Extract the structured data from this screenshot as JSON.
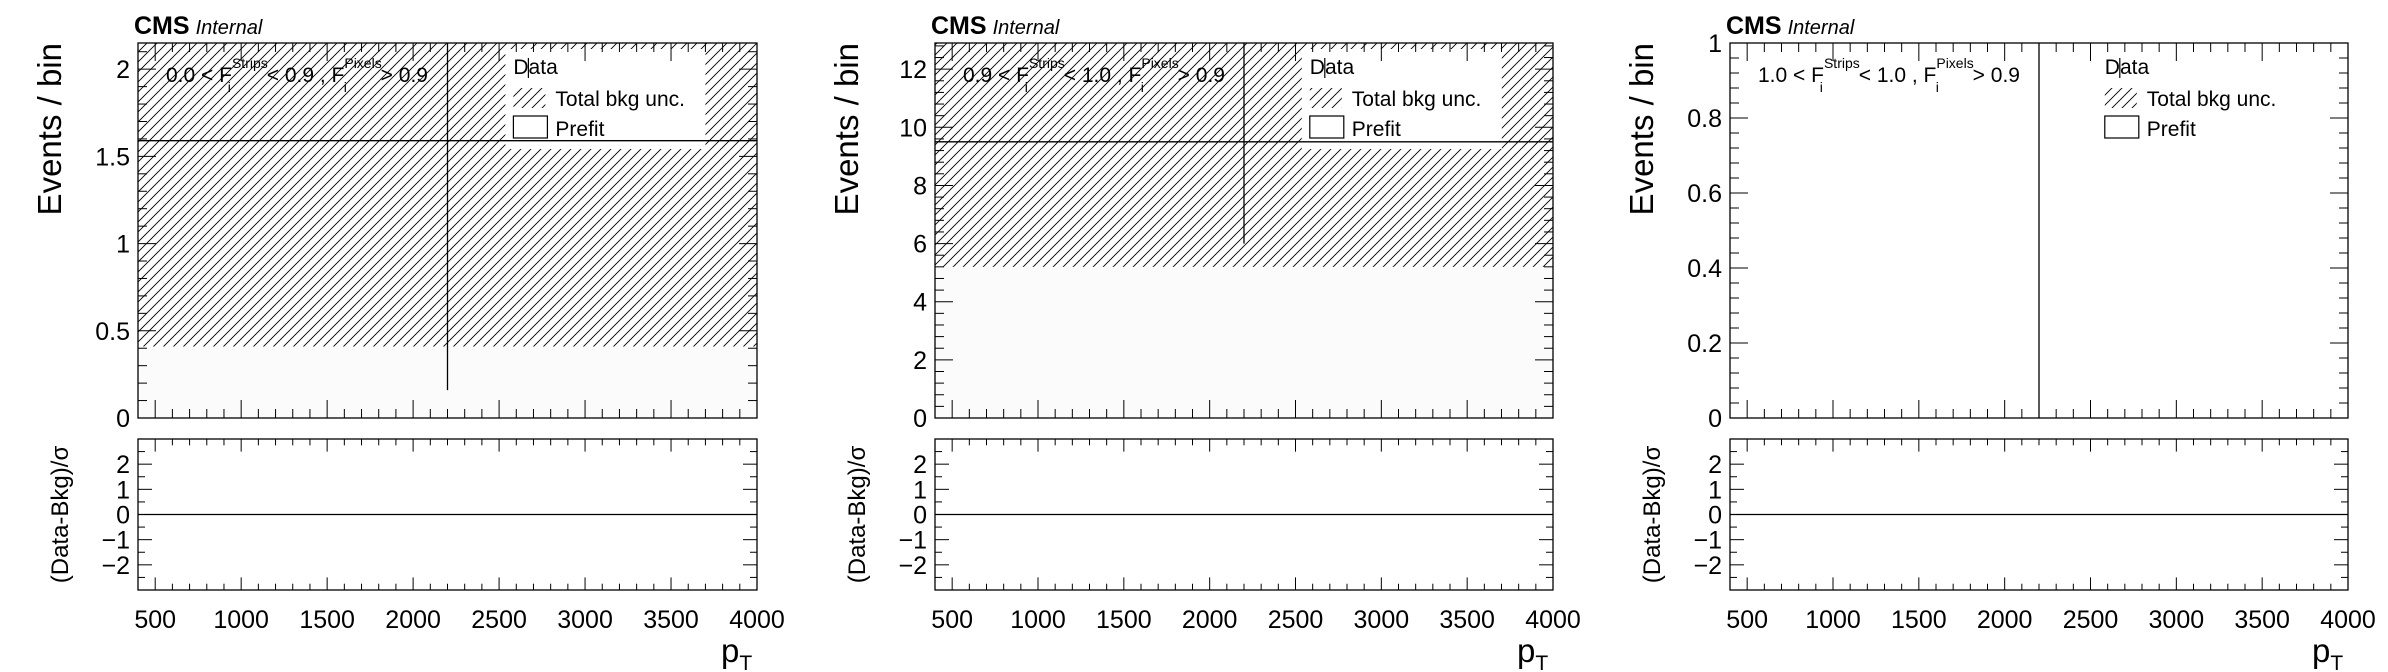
{
  "chart_data": [
    {
      "type": "bar",
      "cms_label": "CMS",
      "cms_sublabel": "Internal",
      "ylabel": "Events / bin",
      "ratio_ylabel": "(Data-Bkg)/σ",
      "xlabel": "p",
      "xlabel_sub": "T",
      "region": {
        "lo": "0.0 <",
        "f_strips": "F",
        "f_strips_sup": "Strips",
        "f_strips_sub": "i",
        "mid": "< 0.9 ,",
        "f_pixels": "F",
        "f_pixels_sup": "Pixels",
        "f_pixels_sub": "i",
        "hi": "> 0.9"
      },
      "legend": [
        {
          "label": "Data",
          "style": "marker"
        },
        {
          "label": "Total bkg unc.",
          "style": "hatch"
        },
        {
          "label": "Prefit",
          "style": "box"
        }
      ],
      "xlim": [
        400,
        4000
      ],
      "ylim": [
        0,
        2.15
      ],
      "yticks": [
        0,
        0.5,
        1,
        1.5,
        2
      ],
      "ytick_labels": [
        "0",
        "0.5",
        "1",
        "1.5",
        "2"
      ],
      "xticks": [
        500,
        1000,
        1500,
        2000,
        2500,
        3000,
        3500,
        4000
      ],
      "xtick_labels": [
        "500",
        "1000",
        "1500",
        "2000",
        "2500",
        "3000",
        "3500",
        "4000"
      ],
      "prefit_value": 1.59,
      "band": [
        0.41,
        2.15
      ],
      "data_x": 2200,
      "data_err": [
        0.16,
        2.15
      ],
      "ratio_ylim": [
        -3,
        3
      ],
      "ratio_yticks": [
        -2,
        -1,
        0,
        1,
        2
      ],
      "ratio_ytick_labels": [
        "−2",
        "−1",
        "0",
        "1",
        "2"
      ]
    },
    {
      "type": "bar",
      "cms_label": "CMS",
      "cms_sublabel": "Internal",
      "ylabel": "Events / bin",
      "ratio_ylabel": "(Data-Bkg)/σ",
      "xlabel": "p",
      "xlabel_sub": "T",
      "region": {
        "lo": "0.9 <",
        "f_strips": "F",
        "f_strips_sup": "Strips",
        "f_strips_sub": "i",
        "mid": "< 1.0 ,",
        "f_pixels": "F",
        "f_pixels_sup": "Pixels",
        "f_pixels_sub": "i",
        "hi": "> 0.9"
      },
      "legend": [
        {
          "label": "Data",
          "style": "marker"
        },
        {
          "label": "Total bkg unc.",
          "style": "hatch"
        },
        {
          "label": "Prefit",
          "style": "box"
        }
      ],
      "xlim": [
        400,
        4000
      ],
      "ylim": [
        0,
        12.9
      ],
      "yticks": [
        0,
        2,
        4,
        6,
        8,
        10,
        12
      ],
      "ytick_labels": [
        "0",
        "2",
        "4",
        "6",
        "8",
        "10",
        "12"
      ],
      "xticks": [
        500,
        1000,
        1500,
        2000,
        2500,
        3000,
        3500,
        4000
      ],
      "xtick_labels": [
        "500",
        "1000",
        "1500",
        "2000",
        "2500",
        "3000",
        "3500",
        "4000"
      ],
      "prefit_value": 9.5,
      "band": [
        5.2,
        12.9
      ],
      "data_x": 2200,
      "data_err": [
        6.0,
        12.9
      ],
      "ratio_ylim": [
        -3,
        3
      ],
      "ratio_yticks": [
        -2,
        -1,
        0,
        1,
        2
      ],
      "ratio_ytick_labels": [
        "−2",
        "−1",
        "0",
        "1",
        "2"
      ]
    },
    {
      "type": "bar",
      "cms_label": "CMS",
      "cms_sublabel": "Internal",
      "ylabel": "Events / bin",
      "ratio_ylabel": "(Data-Bkg)/σ",
      "xlabel": "p",
      "xlabel_sub": "T",
      "region": {
        "lo": "1.0 <",
        "f_strips": "F",
        "f_strips_sup": "Strips",
        "f_strips_sub": "i",
        "mid": "< 1.0 ,",
        "f_pixels": "F",
        "f_pixels_sup": "Pixels",
        "f_pixels_sub": "i",
        "hi": "> 0.9"
      },
      "legend": [
        {
          "label": "Data",
          "style": "marker"
        },
        {
          "label": "Total bkg unc.",
          "style": "hatch"
        },
        {
          "label": "Prefit",
          "style": "box"
        }
      ],
      "xlim": [
        400,
        4000
      ],
      "ylim": [
        0,
        1
      ],
      "yticks": [
        0,
        0.2,
        0.4,
        0.6,
        0.8,
        1
      ],
      "ytick_labels": [
        "0",
        "0.2",
        "0.4",
        "0.6",
        "0.8",
        "1"
      ],
      "xticks": [
        500,
        1000,
        1500,
        2000,
        2500,
        3000,
        3500,
        4000
      ],
      "xtick_labels": [
        "500",
        "1000",
        "1500",
        "2000",
        "2500",
        "3000",
        "3500",
        "4000"
      ],
      "prefit_value": null,
      "band": null,
      "data_x": 2200,
      "data_err": [
        0,
        1
      ],
      "ratio_ylim": [
        -3,
        3
      ],
      "ratio_yticks": [
        -2,
        -1,
        0,
        1,
        2
      ],
      "ratio_ytick_labels": [
        "−2",
        "−1",
        "0",
        "1",
        "2"
      ]
    }
  ]
}
